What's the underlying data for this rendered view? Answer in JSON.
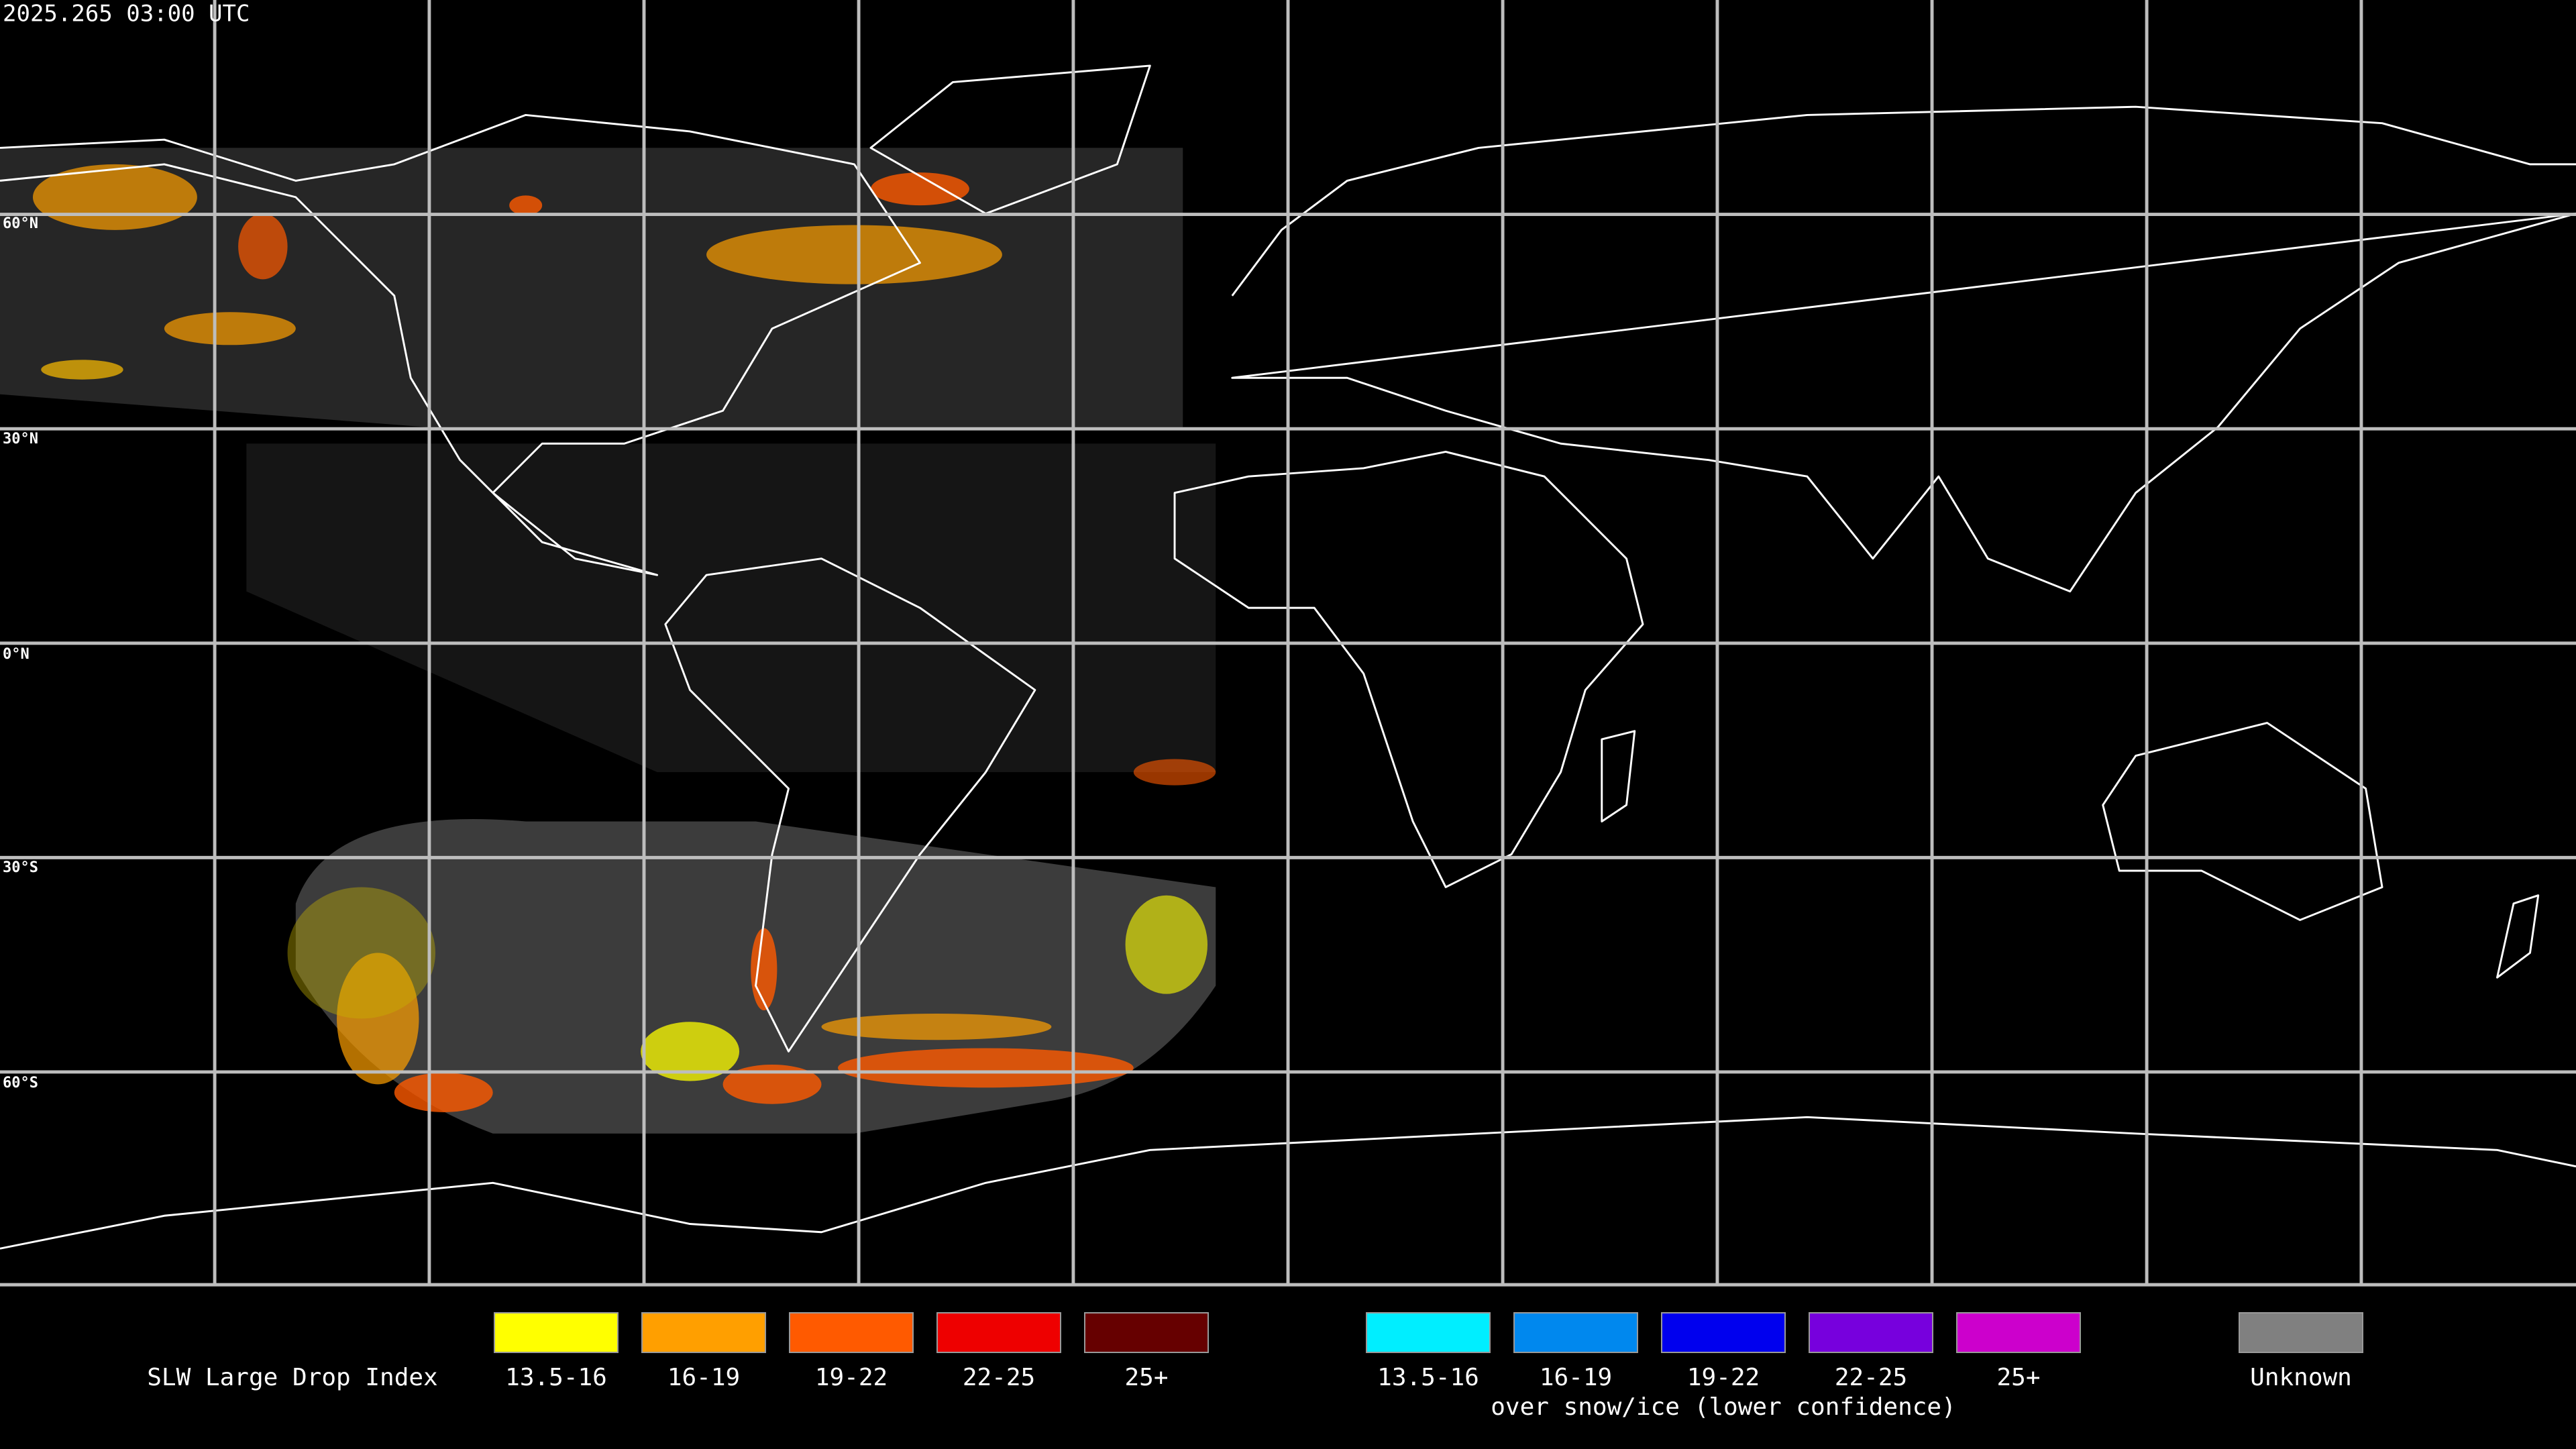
{
  "header": {
    "timestamp": "2025.265 03:00 UTC"
  },
  "map": {
    "latitude_labels": [
      "60°N",
      "30°N",
      "0°N",
      "30°S",
      "60°S"
    ]
  },
  "legend": {
    "title": "SLW Large Drop Index",
    "entries": [
      {
        "label": "13.5-16",
        "color": "#ffff00"
      },
      {
        "label": "16-19",
        "color": "#ff9f00"
      },
      {
        "label": "19-22",
        "color": "#ff5a00"
      },
      {
        "label": "22-25",
        "color": "#ee0000"
      },
      {
        "label": "25+",
        "color": "#660000"
      }
    ],
    "snow_ice_entries": [
      {
        "label": "13.5-16",
        "color": "#00eeff"
      },
      {
        "label": "16-19",
        "color": "#0088ee"
      },
      {
        "label": "19-22",
        "color": "#0000ee"
      },
      {
        "label": "22-25",
        "color": "#7700dd"
      },
      {
        "label": "25+",
        "color": "#cc00cc"
      }
    ],
    "snow_ice_note": "over snow/ice (lower confidence)",
    "unknown": {
      "label": "Unknown",
      "color": "#808080"
    }
  }
}
